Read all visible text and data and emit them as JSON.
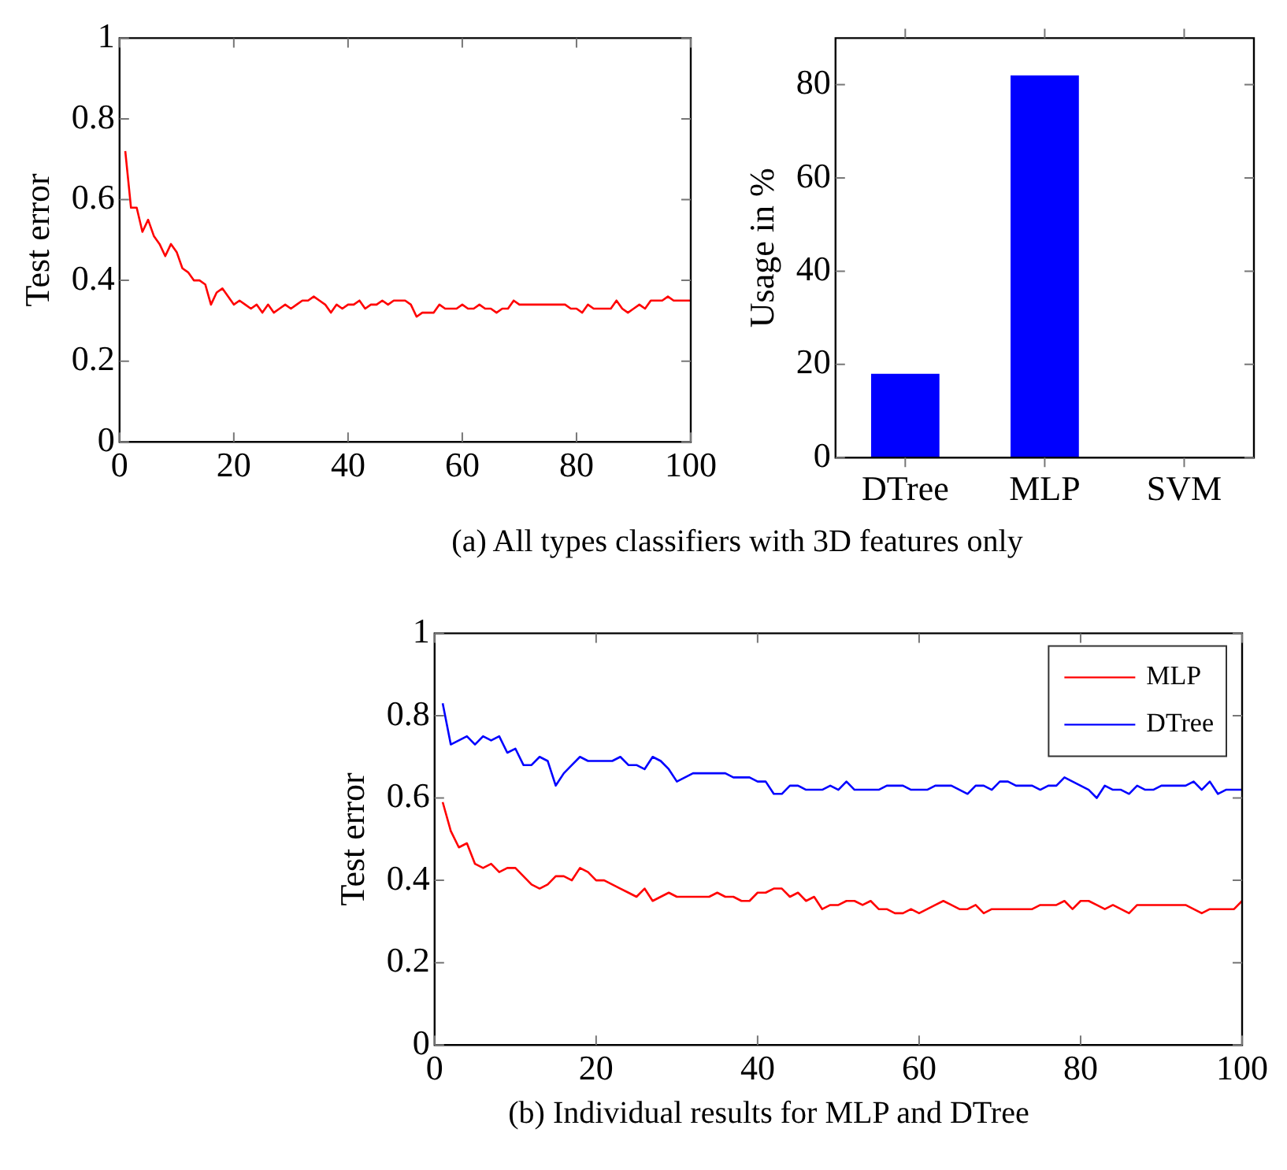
{
  "chart_data": [
    {
      "type": "line",
      "ylabel": "Test error",
      "annotations": [
        "(a) All types classifiers with 3D features only"
      ],
      "x": [
        1,
        2,
        3,
        4,
        5,
        6,
        7,
        8,
        9,
        10,
        11,
        12,
        13,
        14,
        15,
        16,
        17,
        18,
        19,
        20,
        21,
        22,
        23,
        24,
        25,
        26,
        27,
        28,
        29,
        30,
        31,
        32,
        33,
        34,
        35,
        36,
        37,
        38,
        39,
        40,
        41,
        42,
        43,
        44,
        45,
        46,
        47,
        48,
        49,
        50,
        51,
        52,
        53,
        54,
        55,
        56,
        57,
        58,
        59,
        60,
        61,
        62,
        63,
        64,
        65,
        66,
        67,
        68,
        69,
        70,
        71,
        72,
        73,
        74,
        75,
        76,
        77,
        78,
        79,
        80,
        81,
        82,
        83,
        84,
        85,
        86,
        87,
        88,
        89,
        90,
        91,
        92,
        93,
        94,
        95,
        96,
        97,
        98,
        99,
        100
      ],
      "series": [
        {
          "color": "#ff0000",
          "values": [
            0.72,
            0.58,
            0.58,
            0.52,
            0.55,
            0.51,
            0.49,
            0.46,
            0.49,
            0.47,
            0.43,
            0.42,
            0.4,
            0.4,
            0.39,
            0.34,
            0.37,
            0.38,
            0.36,
            0.34,
            0.35,
            0.34,
            0.33,
            0.34,
            0.32,
            0.34,
            0.32,
            0.33,
            0.34,
            0.33,
            0.34,
            0.35,
            0.35,
            0.36,
            0.35,
            0.34,
            0.32,
            0.34,
            0.33,
            0.34,
            0.34,
            0.35,
            0.33,
            0.34,
            0.34,
            0.35,
            0.34,
            0.35,
            0.35,
            0.35,
            0.34,
            0.31,
            0.32,
            0.32,
            0.32,
            0.34,
            0.33,
            0.33,
            0.33,
            0.34,
            0.33,
            0.33,
            0.34,
            0.33,
            0.33,
            0.32,
            0.33,
            0.33,
            0.35,
            0.34,
            0.34,
            0.34,
            0.34,
            0.34,
            0.34,
            0.34,
            0.34,
            0.34,
            0.33,
            0.33,
            0.32,
            0.34,
            0.33,
            0.33,
            0.33,
            0.33,
            0.35,
            0.33,
            0.32,
            0.33,
            0.34,
            0.33,
            0.35,
            0.35,
            0.35,
            0.36,
            0.35,
            0.35,
            0.35,
            0.35
          ]
        }
      ],
      "xlim": [
        0,
        100
      ],
      "xticks": [
        0,
        20,
        40,
        60,
        80,
        100
      ],
      "ylim": [
        0,
        1
      ],
      "yticks": [
        0,
        0.2,
        0.4,
        0.6,
        0.8,
        1
      ],
      "grid": false,
      "legend": false
    },
    {
      "type": "bar",
      "ylabel": "Usage in %",
      "categories": [
        "DTree",
        "MLP",
        "SVM"
      ],
      "values": [
        18,
        82,
        0
      ],
      "color": "#0000ff",
      "ylim": [
        0,
        90
      ],
      "yticks": [
        0,
        20,
        40,
        60,
        80
      ],
      "grid": false,
      "legend": false
    },
    {
      "type": "line",
      "ylabel": "Test error",
      "annotations": [
        "(b) Individual results for MLP and DTree"
      ],
      "x": [
        1,
        2,
        3,
        4,
        5,
        6,
        7,
        8,
        9,
        10,
        11,
        12,
        13,
        14,
        15,
        16,
        17,
        18,
        19,
        20,
        21,
        22,
        23,
        24,
        25,
        26,
        27,
        28,
        29,
        30,
        31,
        32,
        33,
        34,
        35,
        36,
        37,
        38,
        39,
        40,
        41,
        42,
        43,
        44,
        45,
        46,
        47,
        48,
        49,
        50,
        51,
        52,
        53,
        54,
        55,
        56,
        57,
        58,
        59,
        60,
        61,
        62,
        63,
        64,
        65,
        66,
        67,
        68,
        69,
        70,
        71,
        72,
        73,
        74,
        75,
        76,
        77,
        78,
        79,
        80,
        81,
        82,
        83,
        84,
        85,
        86,
        87,
        88,
        89,
        90,
        91,
        92,
        93,
        94,
        95,
        96,
        97,
        98,
        99,
        100
      ],
      "series": [
        {
          "name": "MLP",
          "color": "#ff0000",
          "values": [
            0.59,
            0.52,
            0.48,
            0.49,
            0.44,
            0.43,
            0.44,
            0.42,
            0.43,
            0.43,
            0.41,
            0.39,
            0.38,
            0.39,
            0.41,
            0.41,
            0.4,
            0.43,
            0.42,
            0.4,
            0.4,
            0.39,
            0.38,
            0.37,
            0.36,
            0.38,
            0.35,
            0.36,
            0.37,
            0.36,
            0.36,
            0.36,
            0.36,
            0.36,
            0.37,
            0.36,
            0.36,
            0.35,
            0.35,
            0.37,
            0.37,
            0.38,
            0.38,
            0.36,
            0.37,
            0.35,
            0.36,
            0.33,
            0.34,
            0.34,
            0.35,
            0.35,
            0.34,
            0.35,
            0.33,
            0.33,
            0.32,
            0.32,
            0.33,
            0.32,
            0.33,
            0.34,
            0.35,
            0.34,
            0.33,
            0.33,
            0.34,
            0.32,
            0.33,
            0.33,
            0.33,
            0.33,
            0.33,
            0.33,
            0.34,
            0.34,
            0.34,
            0.35,
            0.33,
            0.35,
            0.35,
            0.34,
            0.33,
            0.34,
            0.33,
            0.32,
            0.34,
            0.34,
            0.34,
            0.34,
            0.34,
            0.34,
            0.34,
            0.33,
            0.32,
            0.33,
            0.33,
            0.33,
            0.33,
            0.35
          ]
        },
        {
          "name": "DTree",
          "color": "#0000ff",
          "values": [
            0.83,
            0.73,
            0.74,
            0.75,
            0.73,
            0.75,
            0.74,
            0.75,
            0.71,
            0.72,
            0.68,
            0.68,
            0.7,
            0.69,
            0.63,
            0.66,
            0.68,
            0.7,
            0.69,
            0.69,
            0.69,
            0.69,
            0.7,
            0.68,
            0.68,
            0.67,
            0.7,
            0.69,
            0.67,
            0.64,
            0.65,
            0.66,
            0.66,
            0.66,
            0.66,
            0.66,
            0.65,
            0.65,
            0.65,
            0.64,
            0.64,
            0.61,
            0.61,
            0.63,
            0.63,
            0.62,
            0.62,
            0.62,
            0.63,
            0.62,
            0.64,
            0.62,
            0.62,
            0.62,
            0.62,
            0.63,
            0.63,
            0.63,
            0.62,
            0.62,
            0.62,
            0.63,
            0.63,
            0.63,
            0.62,
            0.61,
            0.63,
            0.63,
            0.62,
            0.64,
            0.64,
            0.63,
            0.63,
            0.63,
            0.62,
            0.63,
            0.63,
            0.65,
            0.64,
            0.63,
            0.62,
            0.6,
            0.63,
            0.62,
            0.62,
            0.61,
            0.63,
            0.62,
            0.62,
            0.63,
            0.63,
            0.63,
            0.63,
            0.64,
            0.62,
            0.64,
            0.61,
            0.62,
            0.62,
            0.62
          ]
        }
      ],
      "xlim": [
        0,
        100
      ],
      "xticks": [
        0,
        20,
        40,
        60,
        80,
        100
      ],
      "ylim": [
        0,
        1
      ],
      "yticks": [
        0,
        0.2,
        0.4,
        0.6,
        0.8,
        1
      ],
      "grid": false,
      "legend": "top right"
    }
  ]
}
